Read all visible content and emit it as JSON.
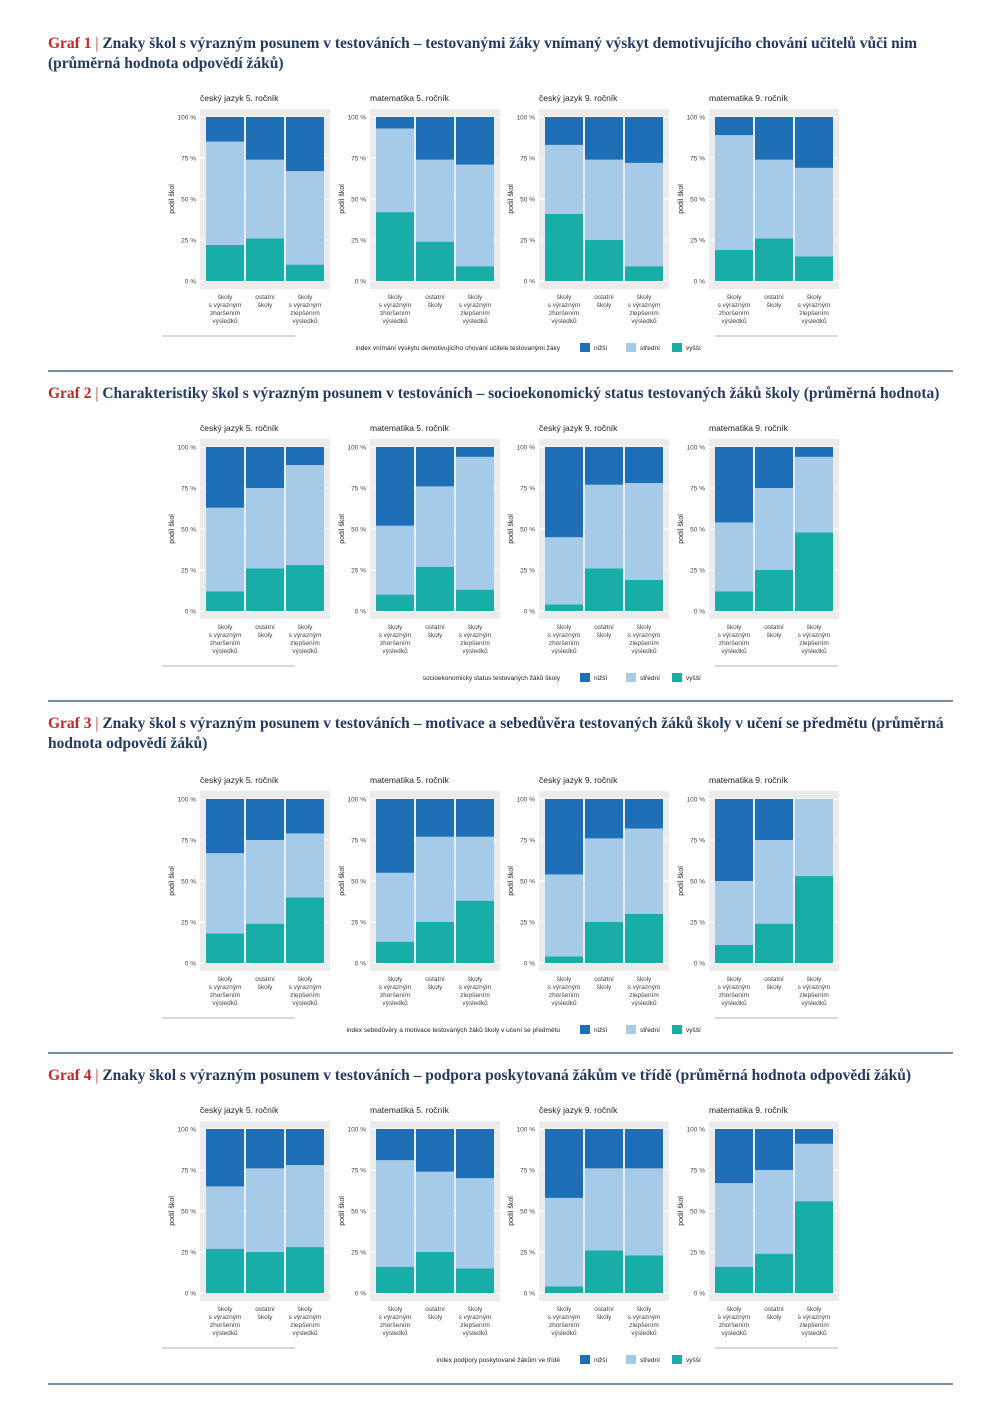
{
  "colors": {
    "nizsi": "#1f6fb7",
    "stredni": "#a5cbe9",
    "vyssi": "#18ada6",
    "panel_bg": "#ebebeb",
    "grid": "#ffffff",
    "title_red": "#c0272d",
    "title_navy": "#243a5e",
    "rule": "#7d8ea6"
  },
  "graphs": [
    {
      "number": "Graf 1",
      "separator": "|",
      "title": "Znaky škol s výrazným posunem v testováních – testovanými žáky vnímaný výskyt demotivujícího chování učitelů vůči nim (průměrná hodnota odpovědí žáků)",
      "legend_title": "index vnímání výskytu demotivujícího chování učitele testovanými žáky"
    },
    {
      "number": "Graf 2",
      "separator": "|",
      "title": "Charakteristiky škol s výrazným posunem v testováních – socioekonomický status testovaných žáků školy (průměrná hodnota)",
      "legend_title": "socioekonomický status testovaných žáků školy"
    },
    {
      "number": "Graf 3",
      "separator": "|",
      "title": "Znaky škol s výrazným posunem v testováních – motivace a sebedůvěra testovaných žáků školy v učení se předmětu (průměrná hodnota odpovědí žáků)",
      "legend_title": "index sebedůvěry a motivace testovaných žáků školy v učení se předmětu"
    },
    {
      "number": "Graf 4",
      "separator": "|",
      "title": "Znaky škol s výrazným posunem v testováních – podpora poskytovaná žákům ve třídě (průměrná hodnota odpovědí žáků)",
      "legend_title": "index podpory poskytované žákům ve třídě"
    }
  ],
  "legend_labels": [
    "nižší",
    "střední",
    "vyšší"
  ],
  "y_axis_label": "podíl škol",
  "y_ticks": [
    "0 %",
    "25 %",
    "50 %",
    "75 %",
    "100 %"
  ],
  "chart_data": [
    {
      "type": "bar",
      "stacked": true,
      "graph": "Graf 1",
      "ylabel": "podíl škol",
      "ylim": [
        0,
        100
      ],
      "categories": [
        [
          "školy",
          "s výrazným",
          "zhoršením",
          "výsledků"
        ],
        [
          "ostatní",
          "školy"
        ],
        [
          "školy",
          "s výrazným",
          "zlepšením",
          "výsledků"
        ]
      ],
      "series_names": [
        "nižší",
        "střední",
        "vyšší"
      ],
      "legend": "bottom",
      "panels": [
        {
          "title": "český jazyk 5. ročník",
          "nizsi": [
            15,
            26,
            33
          ],
          "stredni": [
            63,
            48,
            57
          ],
          "vyssi": [
            22,
            26,
            10
          ]
        },
        {
          "title": "matematika 5. ročník",
          "nizsi": [
            7,
            26,
            29
          ],
          "stredni": [
            51,
            50,
            62
          ],
          "vyssi": [
            42,
            24,
            9
          ]
        },
        {
          "title": "český jazyk 9. ročník",
          "nizsi": [
            17,
            26,
            28
          ],
          "stredni": [
            42,
            49,
            63
          ],
          "vyssi": [
            41,
            25,
            9
          ]
        },
        {
          "title": "matematika 9. ročník",
          "nizsi": [
            11,
            26,
            31
          ],
          "stredni": [
            70,
            48,
            54
          ],
          "vyssi": [
            19,
            26,
            15
          ]
        }
      ]
    },
    {
      "type": "bar",
      "stacked": true,
      "graph": "Graf 2",
      "ylabel": "podíl škol",
      "ylim": [
        0,
        100
      ],
      "categories": [
        [
          "školy",
          "s výrazným",
          "zhoršením",
          "výsledků"
        ],
        [
          "ostatní",
          "školy"
        ],
        [
          "školy",
          "s výrazným",
          "zlepšením",
          "výsledků"
        ]
      ],
      "series_names": [
        "nižší",
        "střední",
        "vyšší"
      ],
      "legend": "bottom",
      "panels": [
        {
          "title": "český jazyk 5. ročník",
          "nizsi": [
            37,
            25,
            11
          ],
          "stredni": [
            51,
            49,
            61
          ],
          "vyssi": [
            12,
            26,
            28
          ]
        },
        {
          "title": "matematika 5. ročník",
          "nizsi": [
            48,
            24,
            6
          ],
          "stredni": [
            42,
            49,
            81
          ],
          "vyssi": [
            10,
            27,
            13
          ]
        },
        {
          "title": "český jazyk 9. ročník",
          "nizsi": [
            55,
            23,
            22
          ],
          "stredni": [
            41,
            51,
            59
          ],
          "vyssi": [
            4,
            26,
            19
          ]
        },
        {
          "title": "matematika 9. ročník",
          "nizsi": [
            46,
            25,
            6
          ],
          "stredni": [
            42,
            50,
            46
          ],
          "vyssi": [
            12,
            25,
            48
          ]
        }
      ]
    },
    {
      "type": "bar",
      "stacked": true,
      "graph": "Graf 3",
      "ylabel": "podíl škol",
      "ylim": [
        0,
        100
      ],
      "categories": [
        [
          "školy",
          "s výrazným",
          "zhoršením",
          "výsledků"
        ],
        [
          "ostatní",
          "školy"
        ],
        [
          "školy",
          "s výrazným",
          "zlepšením",
          "výsledků"
        ]
      ],
      "series_names": [
        "nižší",
        "střední",
        "vyšší"
      ],
      "legend": "bottom",
      "panels": [
        {
          "title": "český jazyk 5. ročník",
          "nizsi": [
            33,
            25,
            21
          ],
          "stredni": [
            49,
            51,
            39
          ],
          "vyssi": [
            18,
            24,
            40
          ]
        },
        {
          "title": "matematika 5. ročník",
          "nizsi": [
            45,
            23,
            23
          ],
          "stredni": [
            42,
            52,
            39
          ],
          "vyssi": [
            13,
            25,
            38
          ]
        },
        {
          "title": "český jazyk 9. ročník",
          "nizsi": [
            46,
            24,
            18
          ],
          "stredni": [
            50,
            51,
            52
          ],
          "vyssi": [
            4,
            25,
            30
          ]
        },
        {
          "title": "matematika 9. ročník",
          "nizsi": [
            50,
            25,
            0
          ],
          "stredni": [
            39,
            51,
            47
          ],
          "vyssi": [
            11,
            24,
            53
          ]
        }
      ]
    },
    {
      "type": "bar",
      "stacked": true,
      "graph": "Graf 4",
      "ylabel": "podíl škol",
      "ylim": [
        0,
        100
      ],
      "categories": [
        [
          "školy",
          "s výrazným",
          "zhoršením",
          "výsledků"
        ],
        [
          "ostatní",
          "školy"
        ],
        [
          "školy",
          "s výrazným",
          "zlepšením",
          "výsledků"
        ]
      ],
      "series_names": [
        "nižší",
        "střední",
        "vyšší"
      ],
      "legend": "bottom",
      "panels": [
        {
          "title": "český jazyk 5. ročník",
          "nizsi": [
            35,
            24,
            22
          ],
          "stredni": [
            38,
            51,
            50
          ],
          "vyssi": [
            27,
            25,
            28
          ]
        },
        {
          "title": "matematika 5. ročník",
          "nizsi": [
            19,
            26,
            30
          ],
          "stredni": [
            65,
            49,
            55
          ],
          "vyssi": [
            16,
            25,
            15
          ]
        },
        {
          "title": "český jazyk 9. ročník",
          "nizsi": [
            42,
            24,
            24
          ],
          "stredni": [
            54,
            50,
            53
          ],
          "vyssi": [
            4,
            26,
            23
          ]
        },
        {
          "title": "matematika 9. ročník",
          "nizsi": [
            33,
            25,
            9
          ],
          "stredni": [
            51,
            51,
            35
          ],
          "vyssi": [
            16,
            24,
            56
          ]
        }
      ]
    }
  ]
}
